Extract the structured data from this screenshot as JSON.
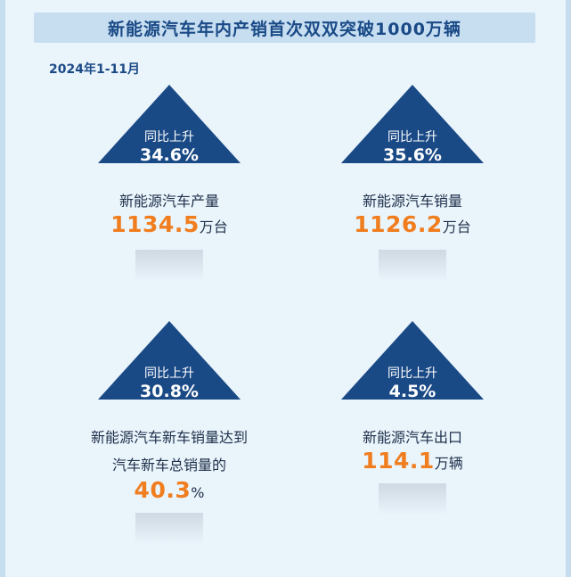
{
  "title": "新能源汽车年内产销首次双双突破1000万辆",
  "period": "2024年1-11月",
  "colors": {
    "arrow": "#1a4a86",
    "accent": "#f07d1e",
    "title_bg": "#c7def1"
  },
  "cards": [
    {
      "arrow_label": "同比上升",
      "arrow_value": "34.6%",
      "label_line1": "新能源汽车产量",
      "label_line2": "",
      "value": "1134.5",
      "unit": "万台"
    },
    {
      "arrow_label": "同比上升",
      "arrow_value": "35.6%",
      "label_line1": "新能源汽车销量",
      "label_line2": "",
      "value": "1126.2",
      "unit": "万台"
    },
    {
      "arrow_label": "同比上升",
      "arrow_value": "30.8%",
      "label_line1": "新能源汽车新车销量达到",
      "label_line2": "汽车新车总销量的",
      "value": "40.3",
      "unit": "%"
    },
    {
      "arrow_label": "同比上升",
      "arrow_value": "4.5%",
      "label_line1": "新能源汽车出口",
      "label_line2": "",
      "value": "114.1",
      "unit": "万辆"
    }
  ]
}
